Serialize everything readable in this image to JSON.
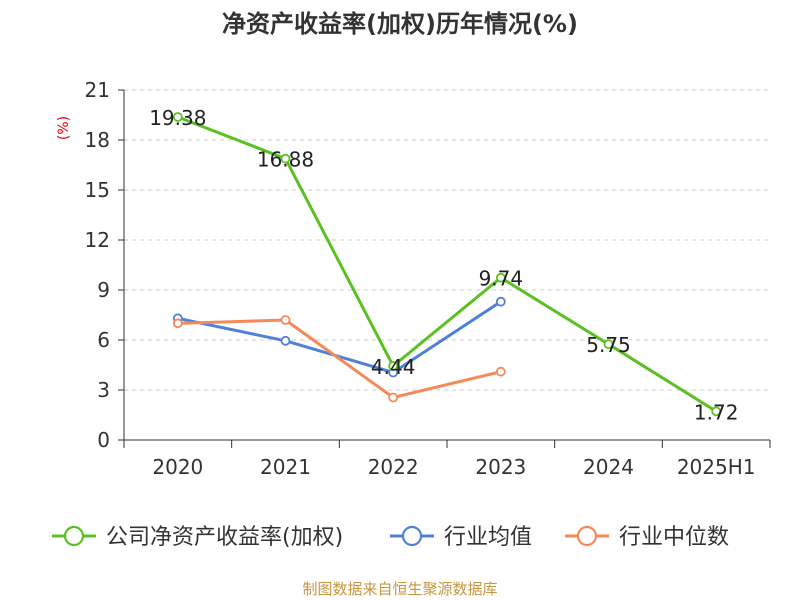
{
  "chart_data": {
    "type": "line",
    "title": "净资产收益率(加权)历年情况(%)",
    "ylabel": "(%)",
    "ylim": [
      0,
      21
    ],
    "yticks": [
      0,
      3,
      6,
      9,
      12,
      15,
      18,
      21
    ],
    "categories": [
      "2020",
      "2021",
      "2022",
      "2023",
      "2024",
      "2025H1"
    ],
    "grid": true,
    "legend_position": "bottom",
    "series": [
      {
        "name": "公司净资产收益率(加权)",
        "color": "#5cbf22",
        "values": [
          19.38,
          16.88,
          4.44,
          9.74,
          5.75,
          1.72
        ],
        "labels": [
          "19.38",
          "16.88",
          "4.44",
          "9.74",
          "5.75",
          "1.72"
        ]
      },
      {
        "name": "行业均值",
        "color": "#4f81d6",
        "values": [
          7.3,
          5.95,
          4.05,
          8.3,
          null,
          null
        ]
      },
      {
        "name": "行业中位数",
        "color": "#f5895a",
        "values": [
          7.0,
          7.2,
          2.55,
          4.1,
          null,
          null
        ]
      }
    ],
    "source": "制图数据来自恒生聚源数据库"
  }
}
